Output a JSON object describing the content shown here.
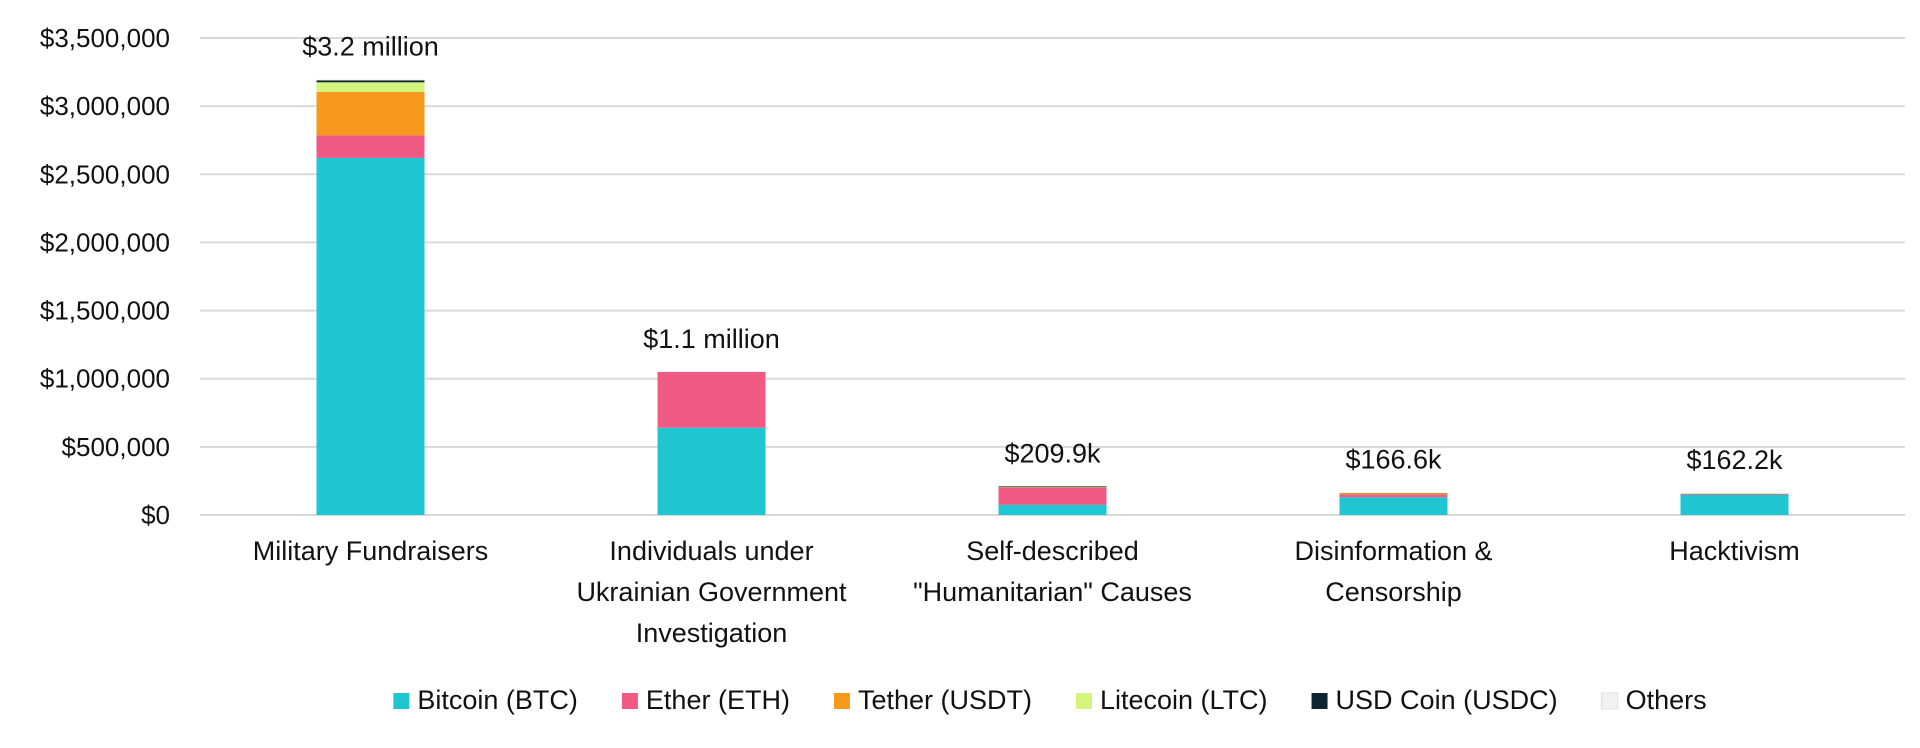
{
  "chart_data": {
    "type": "bar",
    "stacked": true,
    "title": "",
    "xlabel": "",
    "ylabel": "",
    "ylim": [
      0,
      3500000
    ],
    "y_ticks": [
      0,
      500000,
      1000000,
      1500000,
      2000000,
      2500000,
      3000000,
      3500000
    ],
    "y_tick_labels": [
      "$0",
      "$500,000",
      "$1,000,000",
      "$1,500,000",
      "$2,000,000",
      "$2,500,000",
      "$3,000,000",
      "$3,500,000"
    ],
    "grid": true,
    "legend_position": "bottom",
    "categories": [
      [
        "Military Fundraisers"
      ],
      [
        "Individuals under",
        "Ukrainian Government",
        "Investigation"
      ],
      [
        "Self-described",
        "\"Humanitarian\" Causes"
      ],
      [
        "Disinformation &",
        "Censorship"
      ],
      [
        "Hacktivism"
      ]
    ],
    "totals_labels": [
      "$3.2 million",
      "$1.1 million",
      "$209.9k",
      "$166.6k",
      "$162.2k"
    ],
    "series": [
      {
        "name": "Bitcoin (BTC)",
        "color": "#1fc6d1",
        "values": [
          2620000,
          640000,
          75000,
          130000,
          150000
        ]
      },
      {
        "name": "Ether (ETH)",
        "color": "#f05a85",
        "values": [
          165000,
          410000,
          125000,
          20000,
          5000
        ]
      },
      {
        "name": "Tether (USDT)",
        "color": "#f7991c",
        "values": [
          320000,
          0,
          8000,
          10000,
          5000
        ]
      },
      {
        "name": "Litecoin (LTC)",
        "color": "#d3f57e",
        "values": [
          70000,
          0,
          1000,
          3000,
          2000
        ]
      },
      {
        "name": "USD Coin (USDC)",
        "color": "#0d2431",
        "values": [
          15000,
          0,
          900,
          2000,
          0
        ]
      },
      {
        "name": "Others",
        "color": "#f2f2f2",
        "values": [
          5000,
          0,
          0,
          1600,
          200
        ]
      }
    ]
  }
}
